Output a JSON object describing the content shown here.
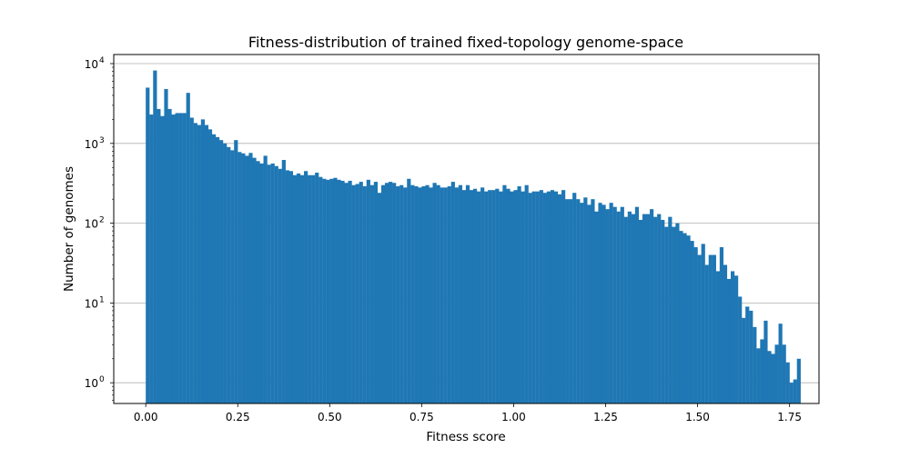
{
  "chart_data": {
    "type": "bar",
    "title": "Fitness-distribution of trained fixed-topology genome-space",
    "xlabel": "Fitness score",
    "ylabel": "Number of genomes",
    "xlim": [
      -0.087,
      1.83
    ],
    "ylim": [
      0.55,
      13000
    ],
    "yscale": "log",
    "grid": "y-major",
    "bar_color": "#1f77b4",
    "bin_start": 0.0,
    "bin_width": 0.01,
    "x_ticks": [
      {
        "value": 0.0,
        "label": "0.00"
      },
      {
        "value": 0.25,
        "label": "0.25"
      },
      {
        "value": 0.5,
        "label": "0.50"
      },
      {
        "value": 0.75,
        "label": "0.75"
      },
      {
        "value": 1.0,
        "label": "1.00"
      },
      {
        "value": 1.25,
        "label": "1.25"
      },
      {
        "value": 1.5,
        "label": "1.50"
      },
      {
        "value": 1.75,
        "label": "1.75"
      }
    ],
    "y_ticks": [
      {
        "value": 1,
        "base": "10",
        "exp": "0"
      },
      {
        "value": 10,
        "base": "10",
        "exp": "1"
      },
      {
        "value": 100,
        "base": "10",
        "exp": "2"
      },
      {
        "value": 1000,
        "base": "10",
        "exp": "3"
      },
      {
        "value": 10000,
        "base": "10",
        "exp": "4"
      }
    ],
    "values": [
      5000,
      2300,
      8200,
      2700,
      2200,
      4800,
      2700,
      2300,
      2400,
      2400,
      2400,
      4300,
      2100,
      1800,
      1700,
      2000,
      1700,
      1500,
      1300,
      1200,
      1100,
      1000,
      900,
      820,
      1100,
      780,
      750,
      700,
      760,
      660,
      600,
      560,
      700,
      540,
      560,
      520,
      480,
      620,
      460,
      450,
      400,
      420,
      400,
      450,
      400,
      400,
      430,
      380,
      360,
      350,
      360,
      370,
      350,
      340,
      320,
      340,
      300,
      310,
      330,
      290,
      350,
      300,
      330,
      240,
      300,
      320,
      330,
      320,
      290,
      300,
      280,
      360,
      300,
      290,
      280,
      290,
      300,
      280,
      320,
      300,
      280,
      280,
      290,
      330,
      280,
      300,
      260,
      300,
      260,
      270,
      250,
      280,
      250,
      260,
      260,
      270,
      250,
      300,
      270,
      250,
      260,
      290,
      250,
      300,
      240,
      250,
      250,
      260,
      240,
      250,
      260,
      250,
      230,
      260,
      200,
      200,
      240,
      200,
      180,
      210,
      170,
      200,
      140,
      180,
      170,
      150,
      180,
      160,
      140,
      160,
      120,
      140,
      130,
      160,
      110,
      130,
      130,
      150,
      120,
      130,
      110,
      90,
      120,
      90,
      100,
      80,
      75,
      70,
      60,
      50,
      40,
      55,
      30,
      40,
      40,
      25,
      50,
      30,
      20,
      25,
      22,
      12,
      6.5,
      9,
      8,
      5,
      2.7,
      3.5,
      6,
      2.5,
      2.3,
      3,
      5.5,
      3,
      1.8,
      1,
      1.1,
      2
    ]
  }
}
